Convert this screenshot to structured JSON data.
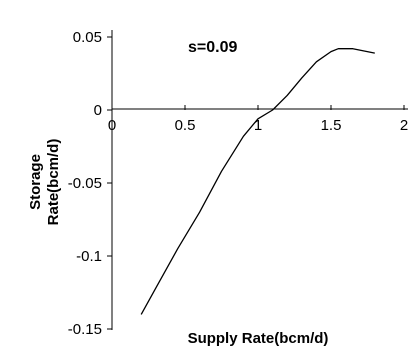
{
  "chart_data": {
    "type": "line",
    "title": "",
    "annotation": "s=0.09",
    "xlabel": "Supply Rate(bcm/d)",
    "ylabel_line1": "Storage",
    "ylabel_line2": "Rate(bcm/d)",
    "xlim": [
      0,
      2
    ],
    "ylim": [
      -0.15,
      0.05
    ],
    "x_ticks": [
      {
        "value": 0,
        "label": "0"
      },
      {
        "value": 0.5,
        "label": "0.5"
      },
      {
        "value": 1,
        "label": "1"
      },
      {
        "value": 1.5,
        "label": "1.5"
      },
      {
        "value": 2,
        "label": "2"
      }
    ],
    "y_ticks": [
      {
        "value": 0.05,
        "label": "0.05"
      },
      {
        "value": 0,
        "label": "0"
      },
      {
        "value": -0.05,
        "label": "-0.05"
      },
      {
        "value": -0.1,
        "label": "-0.1"
      },
      {
        "value": -0.15,
        "label": "-0.15"
      }
    ],
    "grid": false,
    "series": [
      {
        "x": [
          0.2,
          0.3,
          0.45,
          0.6,
          0.75,
          0.9,
          1.0,
          1.1,
          1.2,
          1.3,
          1.4,
          1.5,
          1.55,
          1.65,
          1.8
        ],
        "y": [
          -0.14,
          -0.122,
          -0.095,
          -0.07,
          -0.042,
          -0.018,
          -0.006,
          0.0,
          0.01,
          0.022,
          0.033,
          0.04,
          0.042,
          0.042,
          0.039
        ]
      }
    ],
    "line_color": "#000000"
  }
}
